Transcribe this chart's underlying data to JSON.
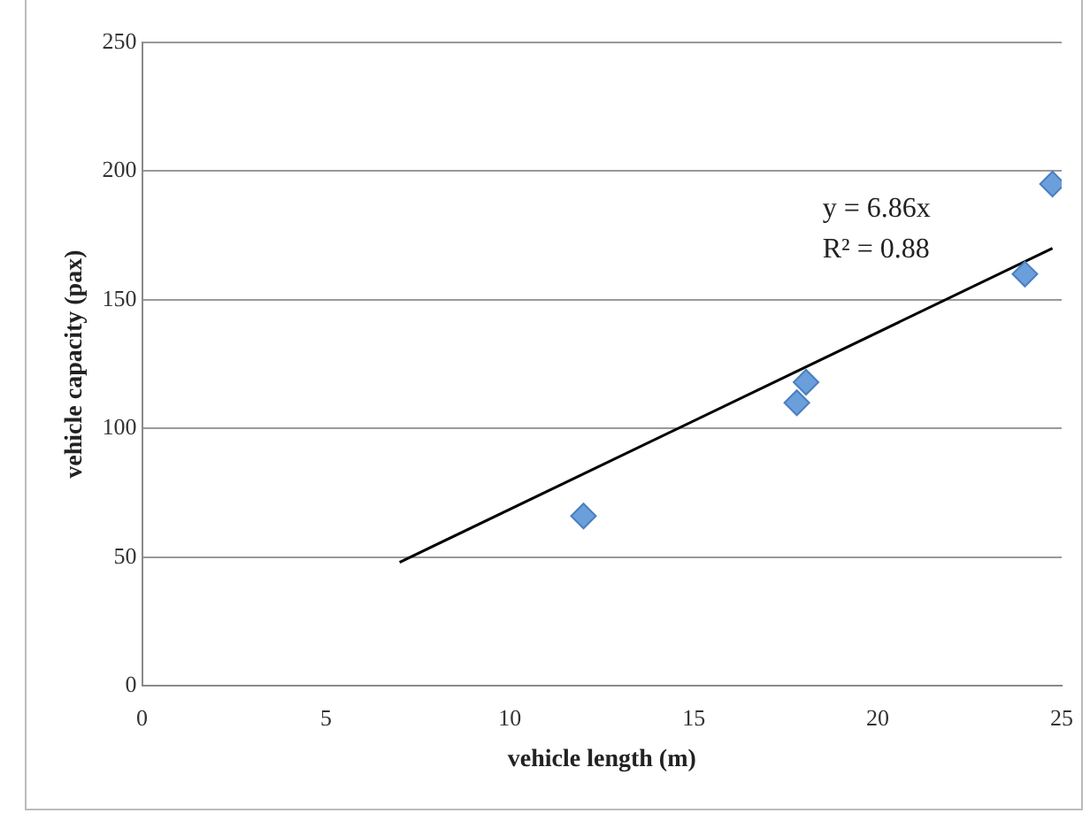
{
  "chart_data": {
    "type": "scatter",
    "xlabel": "vehicle length (m)",
    "ylabel": "vehicle capacity (pax)",
    "xlim": [
      0,
      25
    ],
    "xticks": [
      0,
      5,
      10,
      15,
      20,
      25
    ],
    "ylim": [
      0,
      250
    ],
    "yticks": [
      0,
      50,
      100,
      150,
      200,
      250
    ],
    "grid": "y",
    "legend": false,
    "marker": "diamond",
    "series": [
      {
        "type": "scatter",
        "color": "#6a9fdc",
        "x": [
          12.0,
          17.8,
          18.05,
          24.0,
          24.75
        ],
        "values": [
          66,
          110,
          118,
          160,
          195
        ]
      },
      {
        "type": "line",
        "color": "#000000",
        "marker": "none",
        "x": [
          7,
          24.75
        ],
        "values": [
          48,
          170
        ]
      }
    ],
    "annotations": [
      "y = 6.86x",
      "R² = 0.88"
    ]
  }
}
